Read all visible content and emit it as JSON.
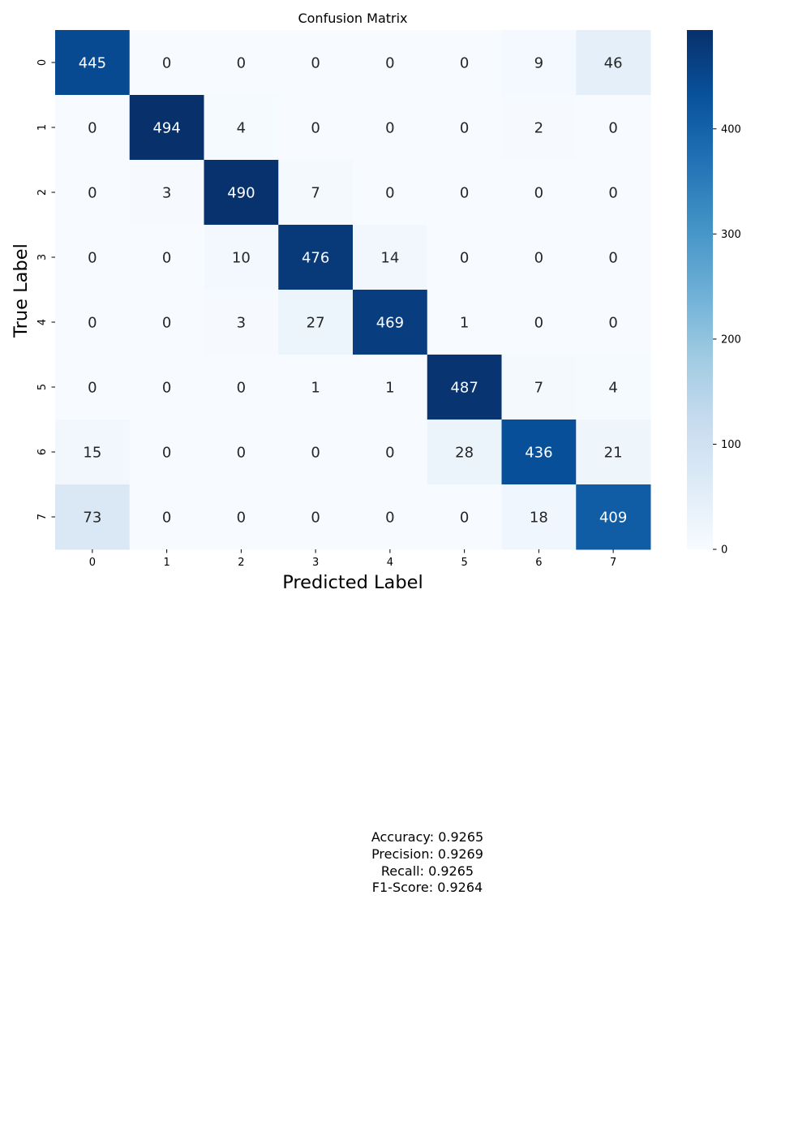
{
  "chart_data": {
    "type": "heatmap",
    "title": "Confusion Matrix",
    "xlabel": "Predicted Label",
    "ylabel": "True Label",
    "x_categories": [
      "0",
      "1",
      "2",
      "3",
      "4",
      "5",
      "6",
      "7"
    ],
    "y_categories": [
      "0",
      "1",
      "2",
      "3",
      "4",
      "5",
      "6",
      "7"
    ],
    "matrix": [
      [
        445,
        0,
        0,
        0,
        0,
        0,
        9,
        46
      ],
      [
        0,
        494,
        4,
        0,
        0,
        0,
        2,
        0
      ],
      [
        0,
        3,
        490,
        7,
        0,
        0,
        0,
        0
      ],
      [
        0,
        0,
        10,
        476,
        14,
        0,
        0,
        0
      ],
      [
        0,
        0,
        3,
        27,
        469,
        1,
        0,
        0
      ],
      [
        0,
        0,
        0,
        1,
        1,
        487,
        7,
        4
      ],
      [
        15,
        0,
        0,
        0,
        0,
        28,
        436,
        21
      ],
      [
        73,
        0,
        0,
        0,
        0,
        0,
        18,
        409
      ]
    ],
    "colormap": "Blues",
    "colorbar": {
      "min": 0,
      "max": 494,
      "ticks": [
        0,
        100,
        200,
        300,
        400
      ]
    }
  },
  "metrics": {
    "accuracy": "Accuracy: 0.9265",
    "precision": "Precision: 0.9269",
    "recall": "Recall: 0.9265",
    "f1": "F1-Score: 0.9264"
  }
}
